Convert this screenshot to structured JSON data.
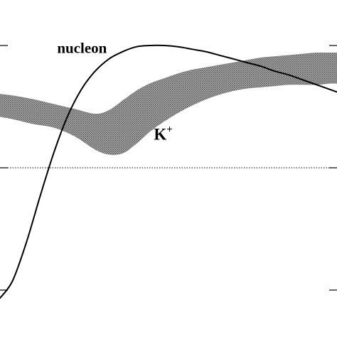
{
  "chart_data": {
    "type": "line",
    "title": "",
    "xlabel": "",
    "ylabel": "",
    "grid": false,
    "reference_line": {
      "y": 0,
      "style": "dotted"
    },
    "ylim": [
      -1,
      1
    ],
    "xlim": [
      0,
      1
    ],
    "series": [
      {
        "name": "nucleon",
        "style": "solid-line",
        "color": "#000000",
        "x": [
          0.02,
          0.06,
          0.1,
          0.14,
          0.18,
          0.22,
          0.26,
          0.3,
          0.34,
          0.38,
          0.42,
          0.46,
          0.5,
          0.54,
          0.58,
          0.62,
          0.66,
          0.7,
          0.74,
          0.78,
          0.82,
          0.86,
          0.9,
          0.94,
          0.98,
          1.0
        ],
        "y": [
          -1.08,
          -0.93,
          -0.62,
          -0.24,
          0.12,
          0.42,
          0.64,
          0.79,
          0.89,
          0.95,
          0.99,
          1.0,
          1.0,
          0.99,
          0.97,
          0.95,
          0.92,
          0.89,
          0.86,
          0.83,
          0.79,
          0.76,
          0.72,
          0.68,
          0.64,
          0.62
        ]
      },
      {
        "name": "K",
        "name_sup": "+",
        "style": "hatched-band",
        "color": "#8a8a8a",
        "x": [
          0.0,
          0.06,
          0.12,
          0.18,
          0.24,
          0.3,
          0.34,
          0.38,
          0.42,
          0.46,
          0.5,
          0.54,
          0.58,
          0.62,
          0.66,
          0.7,
          0.74,
          0.78,
          0.82,
          0.86,
          0.9,
          0.94,
          0.98,
          1.0
        ],
        "y_upper": [
          0.61,
          0.59,
          0.56,
          0.52,
          0.48,
          0.44,
          0.47,
          0.55,
          0.63,
          0.69,
          0.73,
          0.77,
          0.8,
          0.82,
          0.84,
          0.86,
          0.88,
          0.9,
          0.91,
          0.92,
          0.93,
          0.94,
          0.94,
          0.94
        ],
        "y_lower": [
          0.43,
          0.4,
          0.36,
          0.33,
          0.26,
          0.15,
          0.11,
          0.12,
          0.2,
          0.3,
          0.38,
          0.45,
          0.51,
          0.56,
          0.6,
          0.63,
          0.65,
          0.66,
          0.67,
          0.68,
          0.68,
          0.68,
          0.69,
          0.69
        ]
      }
    ],
    "annotations": [
      {
        "text": "nucleon",
        "x": 0.19,
        "y": 0.94
      },
      {
        "text": "K",
        "sup": "+",
        "x": 0.47,
        "y": 0.23
      }
    ]
  }
}
